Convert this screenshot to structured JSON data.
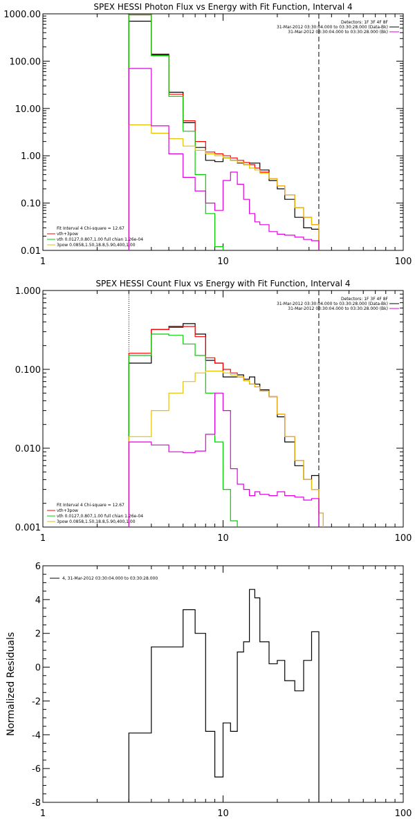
{
  "chart_data": [
    {
      "type": "line",
      "step": true,
      "title": "SPEX HESSI Photon Flux vs Energy with Fit Function, Interval 4",
      "xlabel": "",
      "ylabel": "",
      "xscale": "log",
      "yscale": "log",
      "xlim": [
        1,
        100
      ],
      "ylim": [
        0.01,
        1000
      ],
      "xticks": [
        1,
        10,
        100
      ],
      "xtick_labels": [
        "1",
        "10",
        "100"
      ],
      "yticks": [
        0.01,
        0.1,
        1,
        10,
        100,
        1000
      ],
      "ytick_labels": [
        "0.01",
        "0.10",
        "1.00",
        "10.00",
        "100.00",
        "1000.00"
      ],
      "vlines": [
        {
          "x": 3,
          "style": "dotted"
        },
        {
          "x": 34,
          "style": "dashed"
        }
      ],
      "legend_top": [
        "Detectors: 1F 3F 4F 8F",
        "31-Mar-2012 03:30:04.000 to 03:30:28.000 (Data-Bk)",
        "31-Mar-2012 03:30:04.000 to 03:30:28.000 (Bk)"
      ],
      "legend_bottom": [
        "Fit Interval  4    Chi-square = 12.67",
        "vth+3pow",
        "vth 0.0127,0.807,1.00  full chian 1.26e-04",
        "3pow 0.0858,1.50,18.8,5.90,400,1.00"
      ],
      "legend_position": "top-right / bottom-left",
      "colors": {
        "data": "#000000",
        "total": "#ff0000",
        "thermal": "#00cc00",
        "power": "#e6c000",
        "background": "#dd00dd"
      },
      "series": [
        {
          "role": "data",
          "edges": [
            3,
            4,
            5,
            6,
            7,
            8,
            9,
            10,
            11,
            12,
            13,
            14,
            15,
            16,
            18,
            20,
            22,
            25,
            28,
            31,
            34
          ],
          "values": [
            700,
            140,
            22,
            5,
            1.5,
            0.8,
            0.75,
            0.9,
            0.8,
            0.7,
            0.65,
            0.7,
            0.7,
            0.5,
            0.3,
            0.2,
            0.12,
            0.05,
            0.03,
            0.028
          ]
        },
        {
          "role": "total",
          "edges": [
            3,
            4,
            5,
            6,
            7,
            8,
            9,
            10,
            11,
            12,
            13,
            14,
            15,
            16,
            18,
            20,
            22,
            25,
            28,
            31,
            34
          ],
          "values": [
            950,
            135,
            20,
            5.5,
            2,
            1.2,
            1.1,
            1,
            0.9,
            0.8,
            0.72,
            0.65,
            0.55,
            0.45,
            0.33,
            0.23,
            0.15,
            0.08,
            0.05,
            0.035
          ]
        },
        {
          "role": "thermal",
          "edges": [
            3,
            4,
            5,
            6,
            7,
            8,
            9,
            10
          ],
          "values": [
            950,
            130,
            18,
            3.3,
            0.4,
            0.06,
            0.012
          ]
        },
        {
          "role": "power",
          "edges": [
            3,
            4,
            5,
            6,
            7,
            8,
            9,
            10,
            11,
            12,
            13,
            14,
            15,
            16,
            18,
            20,
            22,
            25,
            28,
            31,
            34
          ],
          "values": [
            4.5,
            3,
            2.3,
            1.6,
            1.3,
            1.1,
            1,
            0.9,
            0.8,
            0.72,
            0.65,
            0.55,
            0.5,
            0.43,
            0.33,
            0.23,
            0.15,
            0.08,
            0.05,
            0.035
          ]
        },
        {
          "role": "background",
          "edges": [
            3,
            4,
            5,
            6,
            7,
            8,
            9,
            10,
            11,
            12,
            13,
            14,
            15,
            16,
            18,
            20,
            22,
            25,
            28,
            31,
            34
          ],
          "values": [
            70,
            4.3,
            1.1,
            0.35,
            0.18,
            0.1,
            0.07,
            0.3,
            0.45,
            0.25,
            0.12,
            0.06,
            0.04,
            0.035,
            0.025,
            0.022,
            0.021,
            0.019,
            0.017,
            0.016
          ]
        }
      ]
    },
    {
      "type": "line",
      "step": true,
      "title": "SPEX HESSI Count Flux vs Energy with Fit Function, Interval 4",
      "xlabel": "",
      "ylabel": "",
      "xscale": "log",
      "yscale": "log",
      "xlim": [
        1,
        100
      ],
      "ylim": [
        0.001,
        1
      ],
      "xticks": [
        1,
        10,
        100
      ],
      "xtick_labels": [
        "1",
        "10",
        "100"
      ],
      "yticks": [
        0.001,
        0.01,
        0.1,
        1
      ],
      "ytick_labels": [
        "0.001",
        "0.010",
        "0.100",
        "1.000"
      ],
      "vlines": [
        {
          "x": 3,
          "style": "dotted"
        },
        {
          "x": 34,
          "style": "dashed"
        }
      ],
      "legend_top": [
        "Detectors: 1F 3F 4F 8F",
        "31-Mar-2012 03:30:04.000 to 03:30:28.000 (Data-Bk)",
        "31-Mar-2012 03:30:04.000 to 03:30:28.000 (Bk)"
      ],
      "legend_bottom": [
        "Fit Interval  4    Chi-square = 12.67",
        "vth+3pow",
        "vth 0.0127,0.807,1.00  full chian 1.26e-04",
        "3pow 0.0858,1.50,18.8,5.90,400,1.00"
      ],
      "legend_position": "top-right / bottom-left",
      "colors": {
        "data": "#000000",
        "total": "#ff0000",
        "thermal": "#00cc00",
        "power": "#e6c000",
        "background": "#dd00dd"
      },
      "series": [
        {
          "role": "data",
          "edges": [
            3,
            4,
            5,
            6,
            7,
            8,
            9,
            10,
            11,
            12,
            13,
            14,
            15,
            16,
            18,
            20,
            22,
            25,
            28,
            31,
            34
          ],
          "values": [
            0.12,
            0.32,
            0.35,
            0.38,
            0.28,
            0.13,
            0.12,
            0.08,
            0.08,
            0.085,
            0.075,
            0.08,
            0.065,
            0.055,
            0.045,
            0.025,
            0.012,
            0.006,
            0.004,
            0.0045
          ]
        },
        {
          "role": "total",
          "edges": [
            3,
            4,
            5,
            6,
            7,
            8,
            9,
            10,
            11,
            12,
            13,
            14,
            15,
            16,
            18,
            20,
            22,
            25,
            28,
            31,
            34,
            36
          ],
          "values": [
            0.16,
            0.32,
            0.34,
            0.35,
            0.26,
            0.14,
            0.12,
            0.1,
            0.09,
            0.08,
            0.072,
            0.065,
            0.06,
            0.053,
            0.045,
            0.027,
            0.014,
            0.007,
            0.004,
            0.003,
            0.0015
          ]
        },
        {
          "role": "thermal",
          "edges": [
            3,
            4,
            5,
            6,
            7,
            8,
            9,
            10,
            11,
            12
          ],
          "values": [
            0.15,
            0.28,
            0.27,
            0.21,
            0.15,
            0.05,
            0.012,
            0.003,
            0.0012
          ]
        },
        {
          "role": "power",
          "edges": [
            3,
            4,
            5,
            6,
            7,
            8,
            9,
            10,
            11,
            12,
            13,
            14,
            15,
            16,
            18,
            20,
            22,
            25,
            28,
            31,
            34,
            36
          ],
          "values": [
            0.014,
            0.03,
            0.05,
            0.07,
            0.09,
            0.095,
            0.095,
            0.09,
            0.085,
            0.08,
            0.072,
            0.065,
            0.06,
            0.053,
            0.045,
            0.027,
            0.014,
            0.007,
            0.004,
            0.003,
            0.0015
          ]
        },
        {
          "role": "background",
          "edges": [
            3,
            4,
            5,
            6,
            7,
            8,
            9,
            10,
            11,
            12,
            13,
            14,
            15,
            16,
            18,
            20,
            22,
            25,
            28,
            31,
            34
          ],
          "values": [
            0.012,
            0.011,
            0.009,
            0.0088,
            0.0092,
            0.015,
            0.05,
            0.03,
            0.0055,
            0.0035,
            0.003,
            0.0025,
            0.0028,
            0.0026,
            0.0025,
            0.0028,
            0.0025,
            0.0024,
            0.0022,
            0.0023
          ]
        }
      ]
    },
    {
      "type": "line",
      "step": true,
      "title": "",
      "xlabel": "",
      "ylabel": "Normalized Residuals",
      "xscale": "log",
      "yscale": "linear",
      "xlim": [
        1,
        100
      ],
      "ylim": [
        -8,
        6
      ],
      "xticks": [
        1,
        10,
        100
      ],
      "xtick_labels": [
        "1",
        "10",
        "100"
      ],
      "yticks": [
        -8,
        -6,
        -4,
        -2,
        0,
        2,
        4,
        6
      ],
      "ytick_labels": [
        "-8",
        "-6",
        "-4",
        "-2",
        "0",
        "2",
        "4",
        "6"
      ],
      "legend": [
        "4, 31-Mar-2012 03:30:04.000 to 03:30:28.000"
      ],
      "legend_position": "top-left",
      "series": [
        {
          "role": "residuals",
          "edges": [
            3,
            4,
            5,
            6,
            7,
            8,
            9,
            10,
            11,
            12,
            13,
            14,
            15,
            16,
            18,
            20,
            22,
            25,
            28,
            31,
            34
          ],
          "values": [
            -3.9,
            1.2,
            1.2,
            3.4,
            2,
            -3.8,
            -6.5,
            -3.3,
            -3.8,
            0.9,
            1.5,
            4.6,
            4.1,
            1.5,
            0.2,
            0.4,
            -0.8,
            -1.4,
            0.4,
            2.1
          ],
          "drop_to": -8
        }
      ]
    }
  ]
}
